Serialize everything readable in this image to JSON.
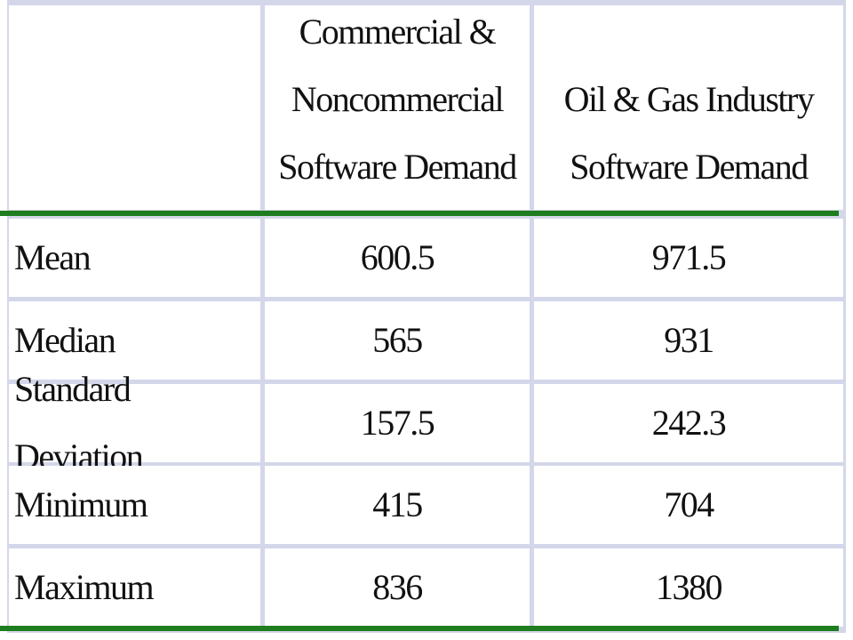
{
  "table": {
    "header": [
      [
        "Commercial &",
        "Noncommercial",
        "Software Demand"
      ],
      [
        "Oil & Gas Industry",
        "Software Demand"
      ]
    ],
    "rows": [
      [
        "Mean",
        600.5,
        971.5
      ],
      [
        "Median",
        565,
        931
      ],
      [
        "Standard Deviation",
        157.5,
        242.3
      ],
      [
        "Minimum",
        415,
        704
      ],
      [
        "Maximum",
        836,
        1380
      ]
    ]
  }
}
